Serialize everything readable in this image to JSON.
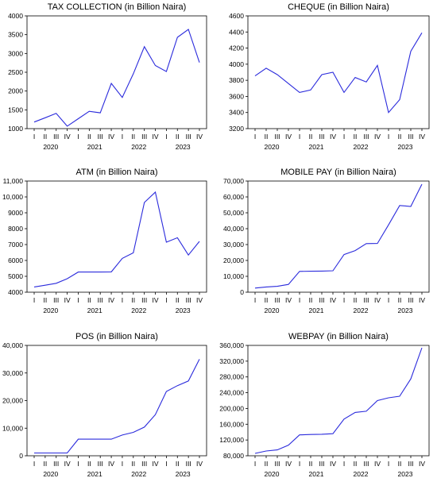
{
  "colors": {
    "series": "#2b2bdc",
    "axes": "#000000",
    "background": "#ffffff"
  },
  "chart_data": [
    {
      "type": "line",
      "title": "TAX COLLECTION (in Billion Naira)",
      "quarter_labels": [
        "I",
        "II",
        "III",
        "IV",
        "I",
        "II",
        "III",
        "IV",
        "I",
        "II",
        "III",
        "IV",
        "I",
        "II",
        "III",
        "IV"
      ],
      "year_labels": [
        "2020",
        "2021",
        "2022",
        "2023"
      ],
      "y_ticks": [
        "1000",
        "1500",
        "2000",
        "2500",
        "3000",
        "3500",
        "4000"
      ],
      "ylim": [
        1000,
        4000
      ],
      "grid": false,
      "x": [
        "2020Q1",
        "2020Q2",
        "2020Q3",
        "2020Q4",
        "2021Q1",
        "2021Q2",
        "2021Q3",
        "2021Q4",
        "2022Q1",
        "2022Q2",
        "2022Q3",
        "2022Q4",
        "2023Q1",
        "2023Q2",
        "2023Q3",
        "2023Q4"
      ],
      "values": [
        1175,
        1290,
        1405,
        1065,
        1265,
        1460,
        1420,
        2205,
        1830,
        2460,
        3180,
        2680,
        2520,
        3430,
        3640,
        2760
      ]
    },
    {
      "type": "line",
      "title": "CHEQUE (in Billion Naira)",
      "quarter_labels": [
        "I",
        "II",
        "III",
        "IV",
        "I",
        "II",
        "III",
        "IV",
        "I",
        "II",
        "III",
        "IV",
        "I",
        "II",
        "III",
        "IV"
      ],
      "year_labels": [
        "2020",
        "2021",
        "2022",
        "2023"
      ],
      "y_ticks": [
        "3200",
        "3400",
        "3600",
        "3800",
        "4000",
        "4200",
        "4400",
        "4600"
      ],
      "ylim": [
        3200,
        4600
      ],
      "grid": false,
      "x": [
        "2020Q1",
        "2020Q2",
        "2020Q3",
        "2020Q4",
        "2021Q1",
        "2021Q2",
        "2021Q3",
        "2021Q4",
        "2022Q1",
        "2022Q2",
        "2022Q3",
        "2022Q4",
        "2023Q1",
        "2023Q2",
        "2023Q3",
        "2023Q4"
      ],
      "values": [
        3855,
        3950,
        3870,
        3760,
        3650,
        3680,
        3870,
        3900,
        3650,
        3835,
        3780,
        3985,
        3400,
        3560,
        4160,
        4390
      ]
    },
    {
      "type": "line",
      "title": "ATM (in Billion Naira)",
      "quarter_labels": [
        "I",
        "II",
        "III",
        "IV",
        "I",
        "II",
        "III",
        "IV",
        "I",
        "II",
        "III",
        "IV",
        "I",
        "II",
        "III",
        "IV"
      ],
      "year_labels": [
        "2020",
        "2021",
        "2022",
        "2023"
      ],
      "y_ticks": [
        "4000",
        "5000",
        "6000",
        "7000",
        "8000",
        "9000",
        "10,000",
        "11,000"
      ],
      "ylim": [
        4000,
        11000
      ],
      "grid": false,
      "x": [
        "2020Q1",
        "2020Q2",
        "2020Q3",
        "2020Q4",
        "2021Q1",
        "2021Q2",
        "2021Q3",
        "2021Q4",
        "2022Q1",
        "2022Q2",
        "2022Q3",
        "2022Q4",
        "2023Q1",
        "2023Q2",
        "2023Q3",
        "2023Q4"
      ],
      "values": [
        4330,
        4440,
        4560,
        4850,
        5270,
        5270,
        5270,
        5280,
        6130,
        6480,
        9650,
        10300,
        7150,
        7430,
        6340,
        7200
      ]
    },
    {
      "type": "line",
      "title": "MOBILE PAY (in Billion Naira)",
      "quarter_labels": [
        "I",
        "II",
        "III",
        "IV",
        "I",
        "II",
        "III",
        "IV",
        "I",
        "II",
        "III",
        "IV",
        "I",
        "II",
        "III",
        "IV"
      ],
      "year_labels": [
        "2020",
        "2021",
        "2022",
        "2023"
      ],
      "y_ticks": [
        "0",
        "10,000",
        "20,000",
        "30,000",
        "40,000",
        "50,000",
        "60,000",
        "70,000"
      ],
      "ylim": [
        0,
        70000
      ],
      "grid": false,
      "x": [
        "2020Q1",
        "2020Q2",
        "2020Q3",
        "2020Q4",
        "2021Q1",
        "2021Q2",
        "2021Q3",
        "2021Q4",
        "2022Q1",
        "2022Q2",
        "2022Q3",
        "2022Q4",
        "2023Q1",
        "2023Q2",
        "2023Q3",
        "2023Q4"
      ],
      "values": [
        2600,
        3300,
        3700,
        4900,
        13100,
        13200,
        13300,
        13500,
        23700,
        26200,
        30600,
        30700,
        42400,
        54600,
        54000,
        68000
      ]
    },
    {
      "type": "line",
      "title": "POS (in Billion Naira)",
      "quarter_labels": [
        "I",
        "II",
        "III",
        "IV",
        "I",
        "II",
        "III",
        "IV",
        "I",
        "II",
        "III",
        "IV",
        "I",
        "II",
        "III",
        "IV"
      ],
      "year_labels": [
        "2020",
        "2021",
        "2022",
        "2023"
      ],
      "y_ticks": [
        "0",
        "10,000",
        "20,000",
        "30,000",
        "40,000"
      ],
      "ylim": [
        0,
        40000
      ],
      "grid": false,
      "x": [
        "2020Q1",
        "2020Q2",
        "2020Q3",
        "2020Q4",
        "2021Q1",
        "2021Q2",
        "2021Q3",
        "2021Q4",
        "2022Q1",
        "2022Q2",
        "2022Q3",
        "2022Q4",
        "2023Q1",
        "2023Q2",
        "2023Q3",
        "2023Q4"
      ],
      "values": [
        1000,
        1000,
        1000,
        1000,
        6000,
        6000,
        6000,
        6000,
        7500,
        8500,
        10400,
        14900,
        23300,
        25400,
        27100,
        35000
      ]
    },
    {
      "type": "line",
      "title": "WEBPAY (in Billion Naira)",
      "quarter_labels": [
        "I",
        "II",
        "III",
        "IV",
        "I",
        "II",
        "III",
        "IV",
        "I",
        "II",
        "III",
        "IV",
        "I",
        "II",
        "III",
        "IV"
      ],
      "year_labels": [
        "2020",
        "2021",
        "2022",
        "2023"
      ],
      "y_ticks": [
        "80,000",
        "120,000",
        "160,000",
        "200,000",
        "240,000",
        "280,000",
        "320,000",
        "360,000"
      ],
      "ylim": [
        80000,
        360000
      ],
      "grid": false,
      "x": [
        "2020Q1",
        "2020Q2",
        "2020Q3",
        "2020Q4",
        "2021Q1",
        "2021Q2",
        "2021Q3",
        "2021Q4",
        "2022Q1",
        "2022Q2",
        "2022Q3",
        "2022Q4",
        "2023Q1",
        "2023Q2",
        "2023Q3",
        "2023Q4"
      ],
      "values": [
        86000,
        92000,
        95000,
        107000,
        133000,
        134000,
        134500,
        136000,
        173000,
        190000,
        193000,
        220000,
        227000,
        231000,
        275000,
        354000
      ]
    }
  ]
}
